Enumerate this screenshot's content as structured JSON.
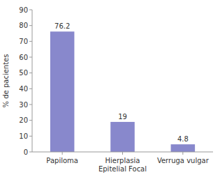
{
  "chart_data": {
    "type": "bar",
    "ylabel": "% de pacientes",
    "categories": [
      "Papiloma",
      "Hierplasia\nEpitelial Focal",
      "Verruga vulgar"
    ],
    "values": [
      76.2,
      19,
      4.8
    ],
    "color": "#8888cc",
    "ylim": [
      0,
      90
    ],
    "yticks": [
      0,
      10,
      20,
      30,
      40,
      50,
      60,
      70,
      80,
      90
    ],
    "data_labels": true,
    "grid": false
  }
}
